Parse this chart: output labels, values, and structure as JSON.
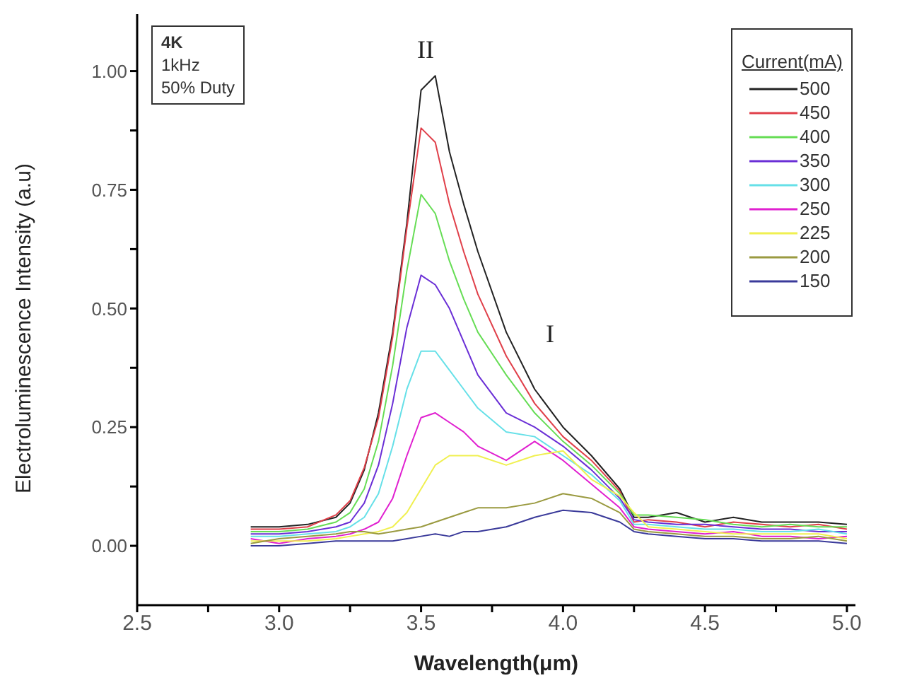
{
  "chart_data": {
    "type": "line",
    "xlabel": "Wavelength(μm)",
    "ylabel": "Electroluminescence Intensity (a.u)",
    "legend_title": "Current(mA)",
    "legend": "top right",
    "grid": false,
    "marker": "none",
    "line_style": "solid",
    "xlim": [
      2.5,
      5.03
    ],
    "ylim": [
      -0.125,
      1.12
    ],
    "xticks": [
      {
        "value": 2.5,
        "label": "2.5"
      },
      {
        "value": 2.75,
        "label": null
      },
      {
        "value": 3,
        "label": "3.0"
      },
      {
        "value": 3.25,
        "label": null
      },
      {
        "value": 3.5,
        "label": "3.5"
      },
      {
        "value": 3.75,
        "label": null
      },
      {
        "value": 4,
        "label": "4.0"
      },
      {
        "value": 4.25,
        "label": null
      },
      {
        "value": 4.5,
        "label": "4.5"
      },
      {
        "value": 4.75,
        "label": null
      },
      {
        "value": 5,
        "label": "5.0"
      }
    ],
    "yticks": [
      {
        "value": 0,
        "label": "0.00"
      },
      {
        "value": 0.125,
        "label": null
      },
      {
        "value": 0.25,
        "label": "0.25"
      },
      {
        "value": 0.375,
        "label": null
      },
      {
        "value": 0.5,
        "label": "0.50"
      },
      {
        "value": 0.625,
        "label": null
      },
      {
        "value": 0.75,
        "label": "0.75"
      },
      {
        "value": 0.875,
        "label": null
      },
      {
        "value": 1,
        "label": "1.00"
      }
    ],
    "x": [
      2.9,
      3.0,
      3.1,
      3.2,
      3.25,
      3.3,
      3.35,
      3.4,
      3.45,
      3.5,
      3.55,
      3.6,
      3.65,
      3.7,
      3.8,
      3.9,
      4.0,
      4.1,
      4.2,
      4.25,
      4.3,
      4.4,
      4.5,
      4.6,
      4.7,
      4.8,
      4.9,
      5.0
    ],
    "series": [
      {
        "name": "500",
        "color": "#222222",
        "values": [
          0.04,
          0.04,
          0.045,
          0.06,
          0.09,
          0.16,
          0.28,
          0.45,
          0.68,
          0.96,
          0.99,
          0.83,
          0.72,
          0.62,
          0.45,
          0.33,
          0.25,
          0.19,
          0.12,
          0.06,
          0.06,
          0.07,
          0.05,
          0.06,
          0.05,
          0.05,
          0.05,
          0.045
        ]
      },
      {
        "name": "450",
        "color": "#e0404a",
        "values": [
          0.035,
          0.035,
          0.04,
          0.065,
          0.095,
          0.165,
          0.27,
          0.44,
          0.67,
          0.88,
          0.85,
          0.72,
          0.62,
          0.53,
          0.4,
          0.3,
          0.23,
          0.18,
          0.115,
          0.05,
          0.055,
          0.05,
          0.04,
          0.05,
          0.045,
          0.04,
          0.045,
          0.035
        ]
      },
      {
        "name": "400",
        "color": "#66dd55",
        "values": [
          0.03,
          0.03,
          0.035,
          0.05,
          0.07,
          0.12,
          0.22,
          0.38,
          0.58,
          0.74,
          0.7,
          0.6,
          0.52,
          0.45,
          0.36,
          0.28,
          0.22,
          0.17,
          0.11,
          0.065,
          0.065,
          0.06,
          0.055,
          0.045,
          0.04,
          0.045,
          0.04,
          0.04
        ]
      },
      {
        "name": "350",
        "color": "#6a2fd6",
        "values": [
          0.025,
          0.025,
          0.03,
          0.04,
          0.05,
          0.09,
          0.17,
          0.3,
          0.46,
          0.57,
          0.55,
          0.5,
          0.43,
          0.36,
          0.28,
          0.25,
          0.21,
          0.16,
          0.1,
          0.055,
          0.05,
          0.045,
          0.045,
          0.04,
          0.035,
          0.035,
          0.03,
          0.03
        ]
      },
      {
        "name": "300",
        "color": "#66e0e8",
        "values": [
          0.02,
          0.02,
          0.025,
          0.03,
          0.04,
          0.06,
          0.11,
          0.21,
          0.33,
          0.41,
          0.41,
          0.37,
          0.33,
          0.29,
          0.24,
          0.23,
          0.19,
          0.15,
          0.095,
          0.045,
          0.045,
          0.04,
          0.035,
          0.035,
          0.03,
          0.03,
          0.035,
          0.025
        ]
      },
      {
        "name": "250",
        "color": "#e020d0",
        "values": [
          0.015,
          0.005,
          0.015,
          0.02,
          0.025,
          0.035,
          0.05,
          0.1,
          0.19,
          0.27,
          0.28,
          0.26,
          0.24,
          0.21,
          0.18,
          0.22,
          0.18,
          0.13,
          0.08,
          0.04,
          0.035,
          0.03,
          0.025,
          0.03,
          0.02,
          0.02,
          0.015,
          0.02
        ]
      },
      {
        "name": "225",
        "color": "#f0f050",
        "values": [
          0.01,
          0.01,
          0.01,
          0.015,
          0.02,
          0.025,
          0.03,
          0.04,
          0.07,
          0.12,
          0.17,
          0.19,
          0.19,
          0.19,
          0.17,
          0.19,
          0.2,
          0.14,
          0.105,
          0.07,
          0.04,
          0.035,
          0.03,
          0.025,
          0.025,
          0.025,
          0.025,
          0.015
        ]
      },
      {
        "name": "200",
        "color": "#9a9a40",
        "values": [
          0.005,
          0.015,
          0.02,
          0.025,
          0.03,
          0.03,
          0.025,
          0.03,
          0.035,
          0.04,
          0.05,
          0.06,
          0.07,
          0.08,
          0.08,
          0.09,
          0.11,
          0.1,
          0.07,
          0.035,
          0.03,
          0.025,
          0.02,
          0.02,
          0.015,
          0.015,
          0.02,
          0.01
        ]
      },
      {
        "name": "150",
        "color": "#3a3a9a",
        "values": [
          0,
          0,
          0.005,
          0.01,
          0.01,
          0.01,
          0.01,
          0.01,
          0.015,
          0.02,
          0.025,
          0.02,
          0.03,
          0.03,
          0.04,
          0.06,
          0.075,
          0.07,
          0.05,
          0.03,
          0.025,
          0.02,
          0.015,
          0.015,
          0.01,
          0.01,
          0.01,
          0.005
        ]
      }
    ],
    "annotations": [
      "4K",
      "1kHz",
      "50% Duty",
      "II",
      "I"
    ]
  }
}
